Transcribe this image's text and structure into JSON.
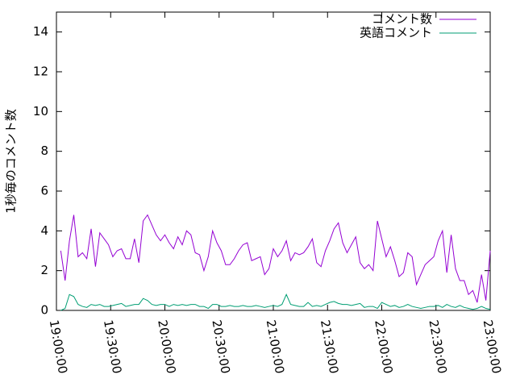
{
  "chart_data": {
    "type": "line",
    "y_label": "1秒毎のコメント数",
    "x": [
      "19:02:24",
      "19:04:48",
      "19:07:12",
      "19:09:36",
      "19:12:00",
      "19:14:24",
      "19:16:48",
      "19:19:12",
      "19:21:36",
      "19:24:00",
      "19:26:24",
      "19:28:48",
      "19:31:12",
      "19:33:36",
      "19:36:00",
      "19:38:24",
      "19:40:48",
      "19:43:12",
      "19:45:36",
      "19:48:00",
      "19:50:24",
      "19:52:48",
      "19:55:12",
      "19:57:36",
      "20:00:00",
      "20:02:24",
      "20:04:48",
      "20:07:12",
      "20:09:36",
      "20:12:00",
      "20:14:24",
      "20:16:48",
      "20:19:12",
      "20:21:36",
      "20:24:00",
      "20:26:24",
      "20:28:48",
      "20:31:12",
      "20:33:36",
      "20:36:00",
      "20:38:24",
      "20:40:48",
      "20:43:12",
      "20:45:36",
      "20:48:00",
      "20:50:24",
      "20:52:48",
      "20:55:12",
      "20:57:36",
      "21:00:00",
      "21:02:24",
      "21:04:48",
      "21:07:12",
      "21:09:36",
      "21:12:00",
      "21:14:24",
      "21:16:48",
      "21:19:12",
      "21:21:36",
      "21:24:00",
      "21:26:24",
      "21:28:48",
      "21:31:12",
      "21:33:36",
      "21:36:00",
      "21:38:24",
      "21:40:48",
      "21:43:12",
      "21:45:36",
      "21:48:00",
      "21:50:24",
      "21:52:48",
      "21:55:12",
      "21:57:36",
      "22:00:00",
      "22:02:24",
      "22:04:48",
      "22:07:12",
      "22:09:36",
      "22:12:00",
      "22:14:24",
      "22:16:48",
      "22:19:12",
      "22:21:36",
      "22:24:00",
      "22:26:24",
      "22:28:48",
      "22:31:12",
      "22:33:36",
      "22:36:00",
      "22:38:24",
      "22:40:48",
      "22:43:12",
      "22:45:36",
      "22:48:00",
      "22:50:24",
      "22:52:48",
      "22:55:12",
      "22:57:36",
      "23:00:00"
    ],
    "series": [
      {
        "name": "コメント数",
        "color": "#9400d3",
        "values": [
          3.0,
          1.5,
          3.5,
          4.8,
          2.7,
          2.9,
          2.6,
          4.1,
          2.2,
          3.9,
          3.6,
          3.3,
          2.7,
          3.0,
          3.1,
          2.6,
          2.6,
          3.6,
          2.4,
          4.5,
          4.8,
          4.3,
          3.8,
          3.5,
          3.8,
          3.4,
          3.1,
          3.7,
          3.3,
          4.0,
          3.8,
          2.9,
          2.8,
          2.0,
          2.7,
          4.0,
          3.4,
          3.0,
          2.3,
          2.3,
          2.6,
          3.0,
          3.3,
          3.4,
          2.5,
          2.6,
          2.7,
          1.8,
          2.1,
          3.1,
          2.7,
          3.0,
          3.5,
          2.5,
          2.9,
          2.8,
          2.9,
          3.2,
          3.6,
          2.4,
          2.2,
          3.0,
          3.5,
          4.1,
          4.4,
          3.4,
          2.9,
          3.3,
          3.7,
          2.4,
          2.1,
          2.3,
          2.0,
          4.5,
          3.6,
          2.7,
          3.2,
          2.5,
          1.7,
          1.9,
          2.9,
          2.7,
          1.3,
          1.8,
          2.3,
          2.5,
          2.7,
          3.5,
          4.0,
          1.9,
          3.8,
          2.1,
          1.5,
          1.5,
          0.8,
          1.0,
          0.4,
          1.8,
          0.5,
          3.0
        ]
      },
      {
        "name": "英語コメント",
        "color": "#009e73",
        "values": [
          0,
          0.1,
          0.8,
          0.7,
          0.3,
          0.2,
          0.15,
          0.3,
          0.25,
          0.3,
          0.2,
          0.2,
          0.25,
          0.3,
          0.35,
          0.2,
          0.25,
          0.3,
          0.3,
          0.6,
          0.5,
          0.3,
          0.25,
          0.3,
          0.3,
          0.2,
          0.3,
          0.25,
          0.3,
          0.25,
          0.3,
          0.3,
          0.2,
          0.2,
          0.1,
          0.3,
          0.3,
          0.2,
          0.2,
          0.25,
          0.2,
          0.2,
          0.25,
          0.2,
          0.2,
          0.25,
          0.2,
          0.15,
          0.2,
          0.25,
          0.2,
          0.3,
          0.8,
          0.3,
          0.25,
          0.2,
          0.2,
          0.4,
          0.2,
          0.25,
          0.2,
          0.3,
          0.4,
          0.45,
          0.35,
          0.3,
          0.3,
          0.25,
          0.3,
          0.35,
          0.15,
          0.2,
          0.2,
          0.1,
          0.4,
          0.3,
          0.2,
          0.25,
          0.15,
          0.2,
          0.3,
          0.2,
          0.15,
          0.1,
          0.15,
          0.2,
          0.2,
          0.25,
          0.15,
          0.3,
          0.2,
          0.15,
          0.25,
          0.15,
          0.1,
          0.05,
          0.1,
          0.2,
          0.1,
          0.05
        ]
      }
    ],
    "xlim": [
      "19:00:00",
      "23:00:00"
    ],
    "xticks": [
      "19:00:00",
      "19:30:00",
      "20:00:00",
      "20:30:00",
      "21:00:00",
      "21:30:00",
      "22:00:00",
      "22:30:00",
      "23:00:00"
    ],
    "ylim": [
      0,
      15
    ],
    "yticks": [
      0,
      2,
      4,
      6,
      8,
      10,
      12,
      14
    ],
    "legend": "top-right"
  }
}
